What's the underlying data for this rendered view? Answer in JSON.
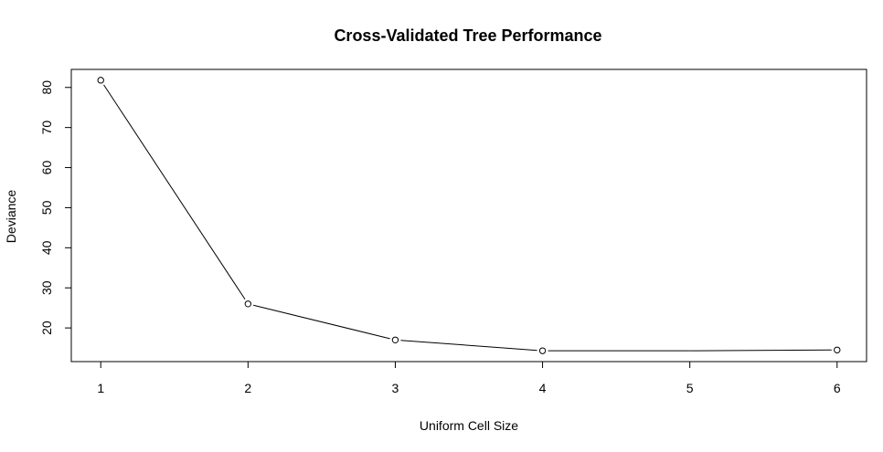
{
  "chart_data": {
    "type": "line",
    "title": "Cross-Validated Tree Performance",
    "xlabel": "Uniform Cell Size",
    "ylabel": "Deviance",
    "x": [
      1,
      2,
      3,
      4,
      5,
      6
    ],
    "y": [
      81.8,
      26.0,
      17.0,
      14.3,
      14.3,
      14.5
    ],
    "x_ticks": [
      "1",
      "2",
      "3",
      "4",
      "5",
      "6"
    ],
    "y_ticks": [
      "20",
      "30",
      "40",
      "50",
      "60",
      "70",
      "80"
    ],
    "xlim": [
      0.8,
      6.2
    ],
    "ylim": [
      11.6,
      84.5
    ],
    "markers_at": [
      1,
      2,
      3,
      4,
      6
    ],
    "grid": false,
    "colors": {
      "line": "#000000",
      "marker_fill": "#ffffff",
      "marker_stroke": "#000000"
    }
  }
}
